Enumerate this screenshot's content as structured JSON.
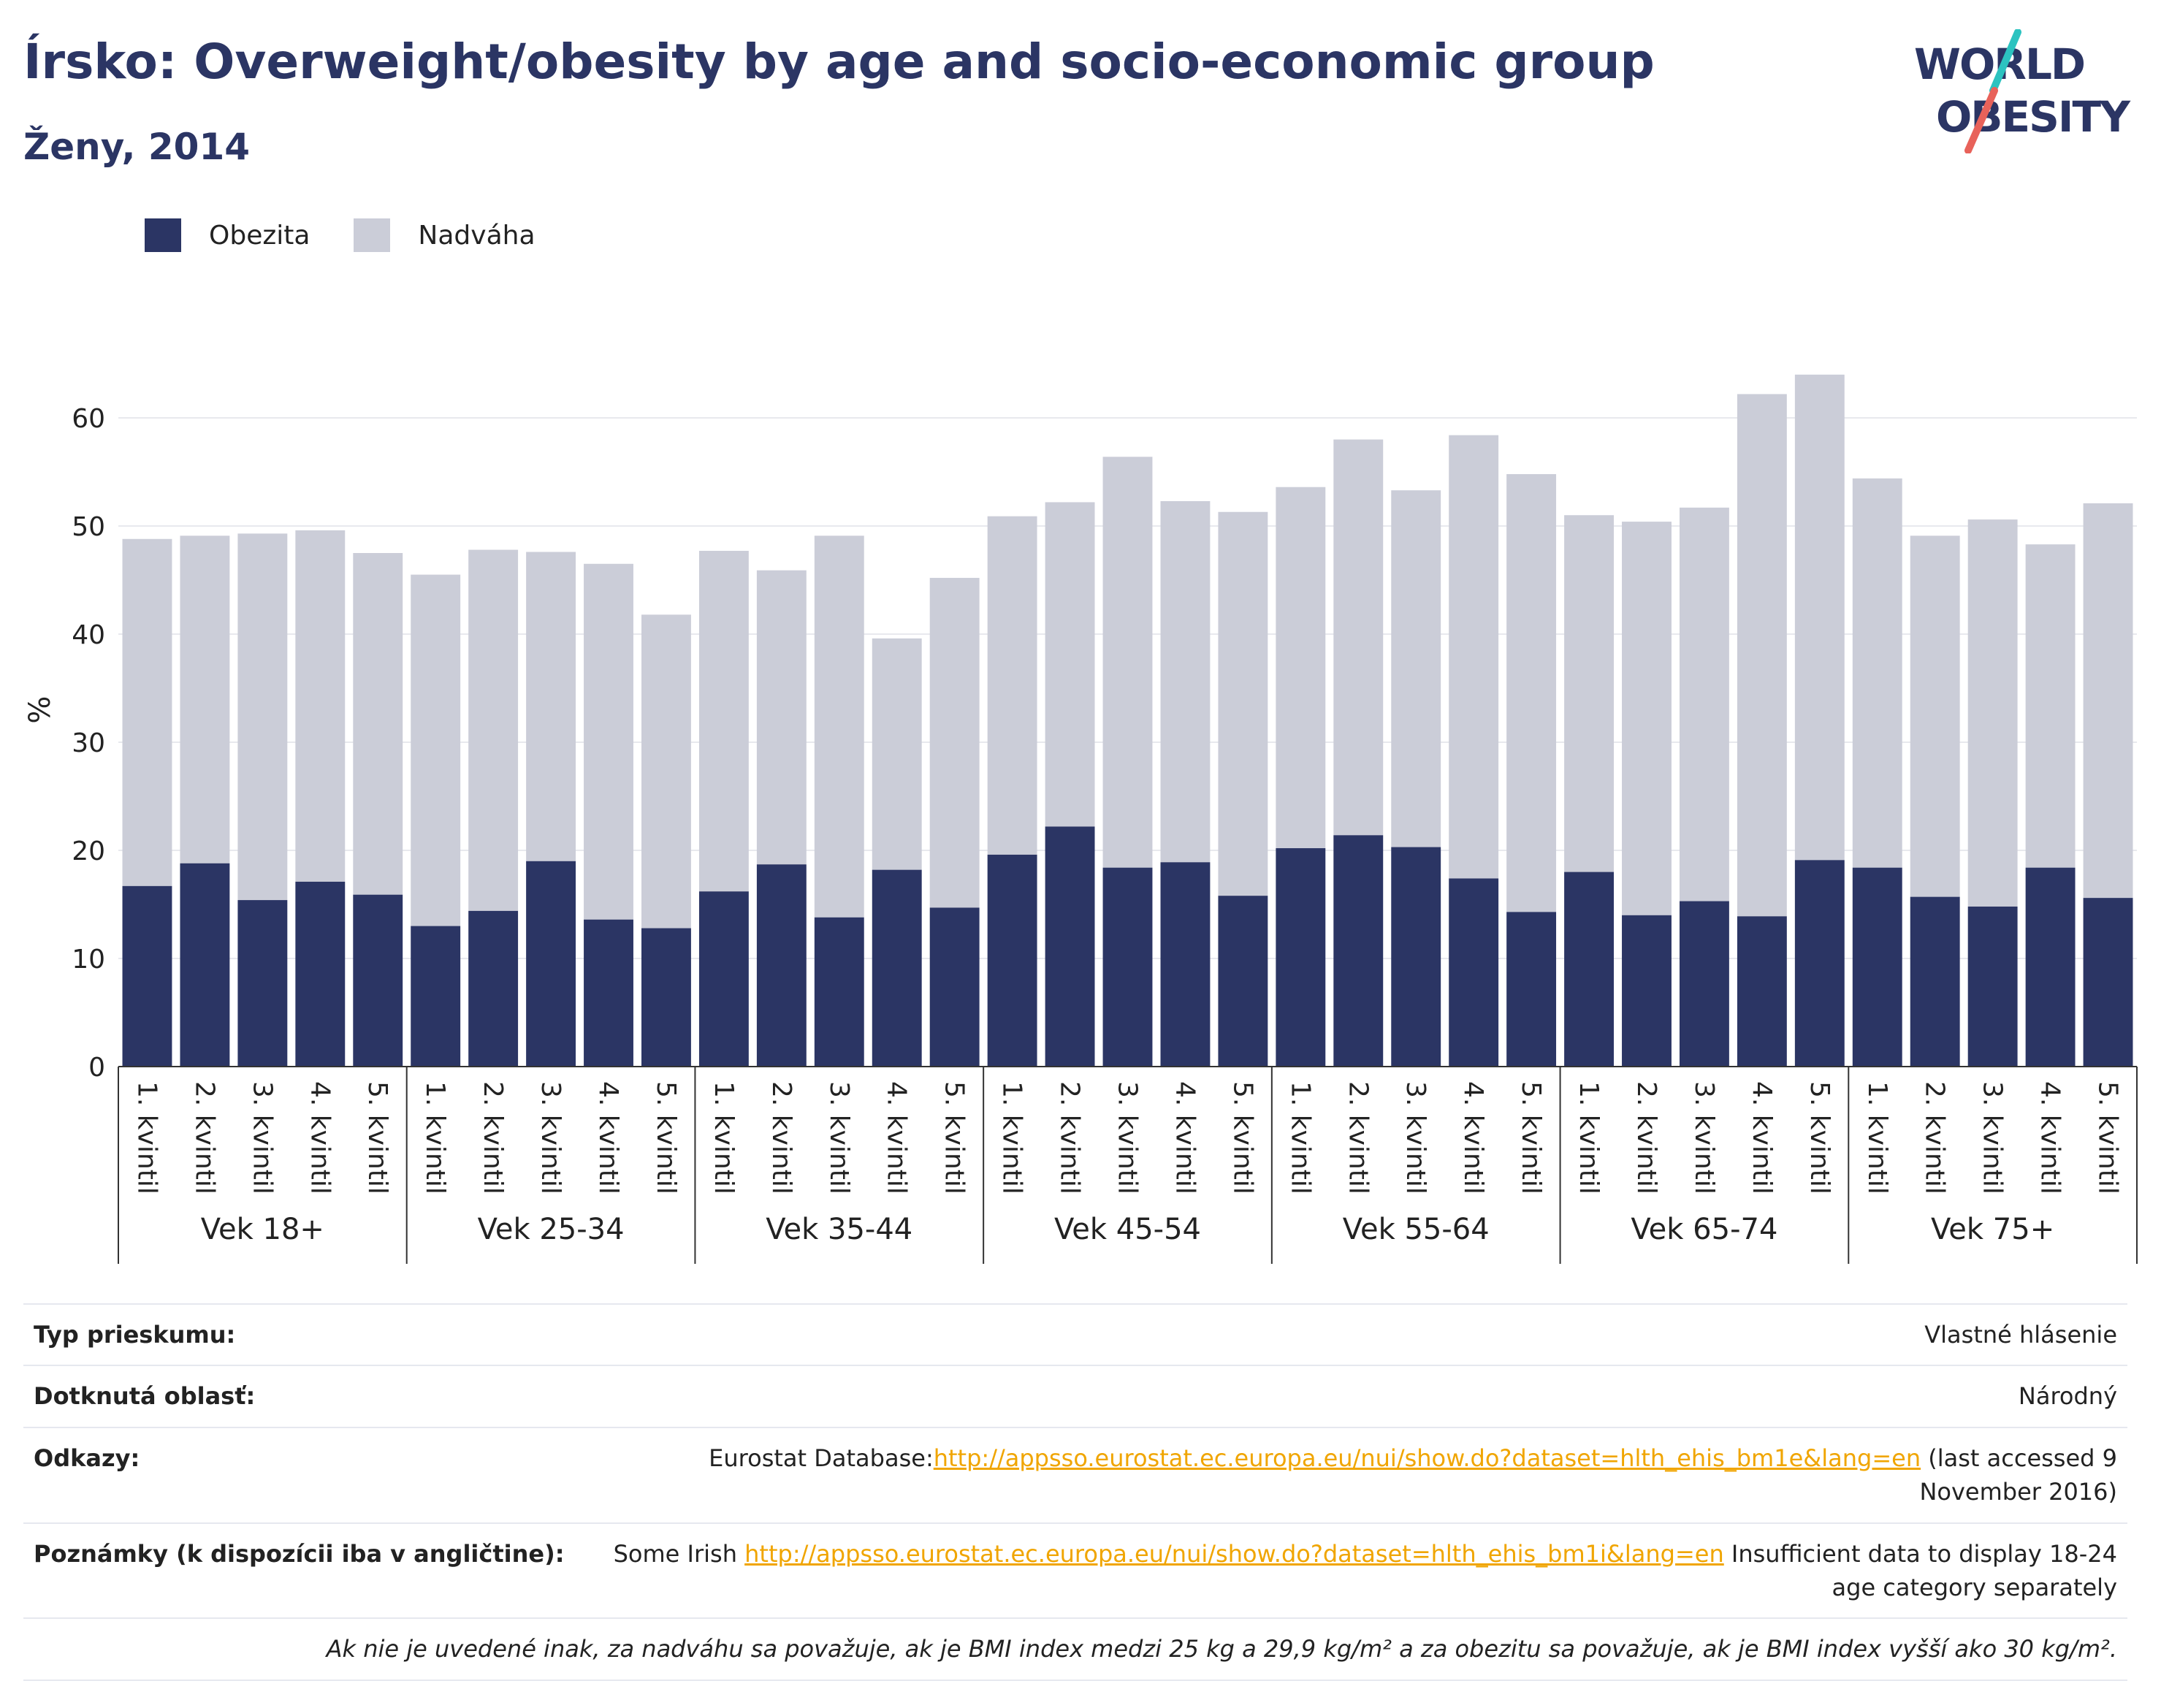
{
  "header": {
    "title": "Írsko: Overweight/obesity by age and socio-economic group",
    "subtitle": "Ženy, 2014"
  },
  "logo": {
    "line1": "WORLD",
    "line2": "OBESITY",
    "accent_colors": [
      "#2cc3c0",
      "#e8625a"
    ]
  },
  "legend": [
    {
      "label": "Obezita",
      "color": "#2b3564"
    },
    {
      "label": "Nadváha",
      "color": "#cbcdd8"
    }
  ],
  "chart_data": {
    "type": "bar",
    "stacked": true,
    "ylabel": "%",
    "ylim": [
      0,
      67
    ],
    "yticks": [
      0,
      10,
      20,
      30,
      40,
      50,
      60
    ],
    "grid": true,
    "groups": [
      "Vek 18+",
      "Vek 25-34",
      "Vek 35-44",
      "Vek 45-54",
      "Vek 55-64",
      "Vek 65-74",
      "Vek 75+"
    ],
    "quintiles": [
      "1. kvintil",
      "2. kvintil",
      "3. kvintil",
      "4. kvintil",
      "5. kvintil"
    ],
    "series": [
      {
        "name": "Obezita",
        "color": "#2b3564",
        "values": [
          16.7,
          18.8,
          15.4,
          17.1,
          15.9,
          13.0,
          14.4,
          19.0,
          13.6,
          12.8,
          16.2,
          18.7,
          13.8,
          18.2,
          14.7,
          19.6,
          22.2,
          18.4,
          18.9,
          15.8,
          20.2,
          21.4,
          20.3,
          17.4,
          14.3,
          18.0,
          14.0,
          15.3,
          13.9,
          19.1,
          18.4,
          15.7,
          14.8,
          18.4,
          15.6
        ]
      },
      {
        "name": "Nadváha",
        "color": "#cbcdd8",
        "values": [
          32.1,
          30.3,
          33.9,
          32.5,
          31.6,
          32.5,
          33.4,
          28.6,
          32.9,
          29.0,
          31.5,
          27.2,
          35.3,
          21.4,
          30.5,
          31.3,
          30.0,
          38.0,
          33.4,
          35.5,
          33.4,
          36.6,
          33.0,
          41.0,
          40.5,
          33.0,
          36.4,
          36.4,
          48.3,
          44.9,
          36.0,
          33.4,
          35.8,
          29.9,
          36.5
        ]
      }
    ]
  },
  "info": {
    "survey_label": "Typ prieskumu:",
    "survey_value": "Vlastné hlásenie",
    "area_label": "Dotknutá oblasť:",
    "area_value": "Národný",
    "refs_label": "Odkazy:",
    "refs_prefix": "Eurostat Database:",
    "refs_link": "http://appsso.eurostat.ec.europa.eu/nui/show.do?dataset=hlth_ehis_bm1e&lang=en",
    "refs_suffix": " (last accessed 9 November 2016)",
    "notes_label": "Poznámky (k dispozícii iba v angličtine):",
    "notes_prefix": "Some Irish ",
    "notes_link": "http://appsso.eurostat.ec.europa.eu/nui/show.do?dataset=hlth_ehis_bm1i&lang=en",
    "notes_suffix": " Insufficient data to display 18-24 age category separately",
    "footnote": "Ak nie je uvedené inak, za nadváhu sa považuje, ak je BMI index medzi 25 kg a 29,9 kg/m² a za obezitu sa považuje, ak je BMI index vyšší ako 30 kg/m²."
  }
}
